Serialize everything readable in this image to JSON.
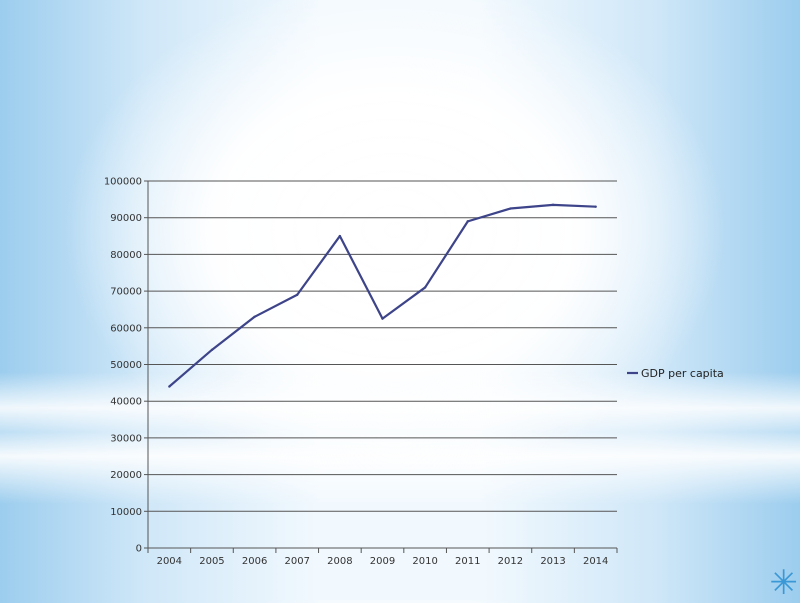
{
  "chart_data": {
    "type": "line",
    "title": "",
    "xlabel": "",
    "ylabel": "",
    "categories": [
      "2004",
      "2005",
      "2006",
      "2007",
      "2008",
      "2009",
      "2010",
      "2011",
      "2012",
      "2013",
      "2014"
    ],
    "series": [
      {
        "name": "GDP per capita",
        "values": [
          44000,
          54000,
          63000,
          69000,
          85000,
          62500,
          71000,
          89000,
          92500,
          93500,
          93000
        ]
      }
    ],
    "ylim": [
      0,
      100000
    ],
    "yticks": [
      0,
      10000,
      20000,
      30000,
      40000,
      50000,
      60000,
      70000,
      80000,
      90000,
      100000
    ],
    "grid": true,
    "legend_position": "right",
    "colors": {
      "line": "#3d4489",
      "grid": "#555555",
      "axis": "#555555"
    }
  },
  "decoration": {
    "icon": "asterisk-icon",
    "glyph": "✳"
  }
}
